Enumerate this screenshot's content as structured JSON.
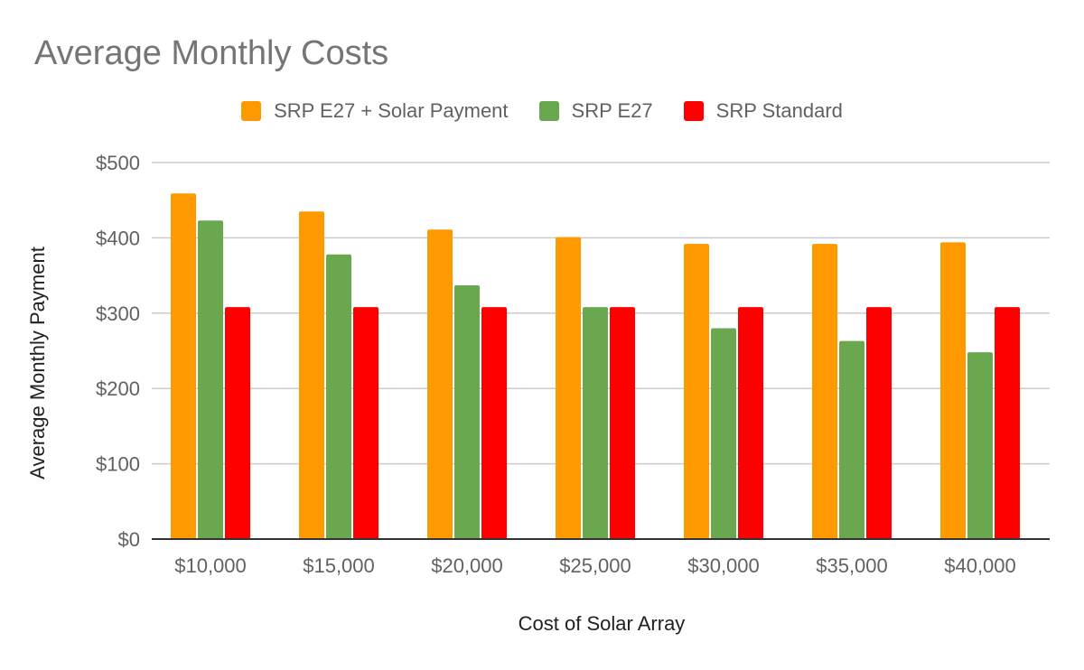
{
  "chart_data": {
    "type": "bar",
    "title": "Average Monthly Costs",
    "xlabel": "Cost of Solar Array",
    "ylabel": "Average Monthly Payment",
    "categories": [
      "$10,000",
      "$15,000",
      "$20,000",
      "$25,000",
      "$30,000",
      "$35,000",
      "$40,000"
    ],
    "series": [
      {
        "name": "SRP E27 + Solar Payment",
        "color": "#ff9900",
        "values": [
          459,
          435,
          411,
          401,
          392,
          392,
          394
        ]
      },
      {
        "name": "SRP E27",
        "color": "#6aa84f",
        "values": [
          423,
          378,
          337,
          308,
          280,
          263,
          248
        ]
      },
      {
        "name": "SRP Standard",
        "color": "#ff0000",
        "values": [
          308,
          308,
          308,
          308,
          308,
          308,
          308
        ]
      }
    ],
    "yticks": [
      "$0",
      "$100",
      "$200",
      "$300",
      "$400",
      "$500"
    ],
    "ytick_values": [
      0,
      100,
      200,
      300,
      400,
      500
    ],
    "ylim": [
      0,
      500
    ],
    "grid": true,
    "legend_position": "top"
  }
}
